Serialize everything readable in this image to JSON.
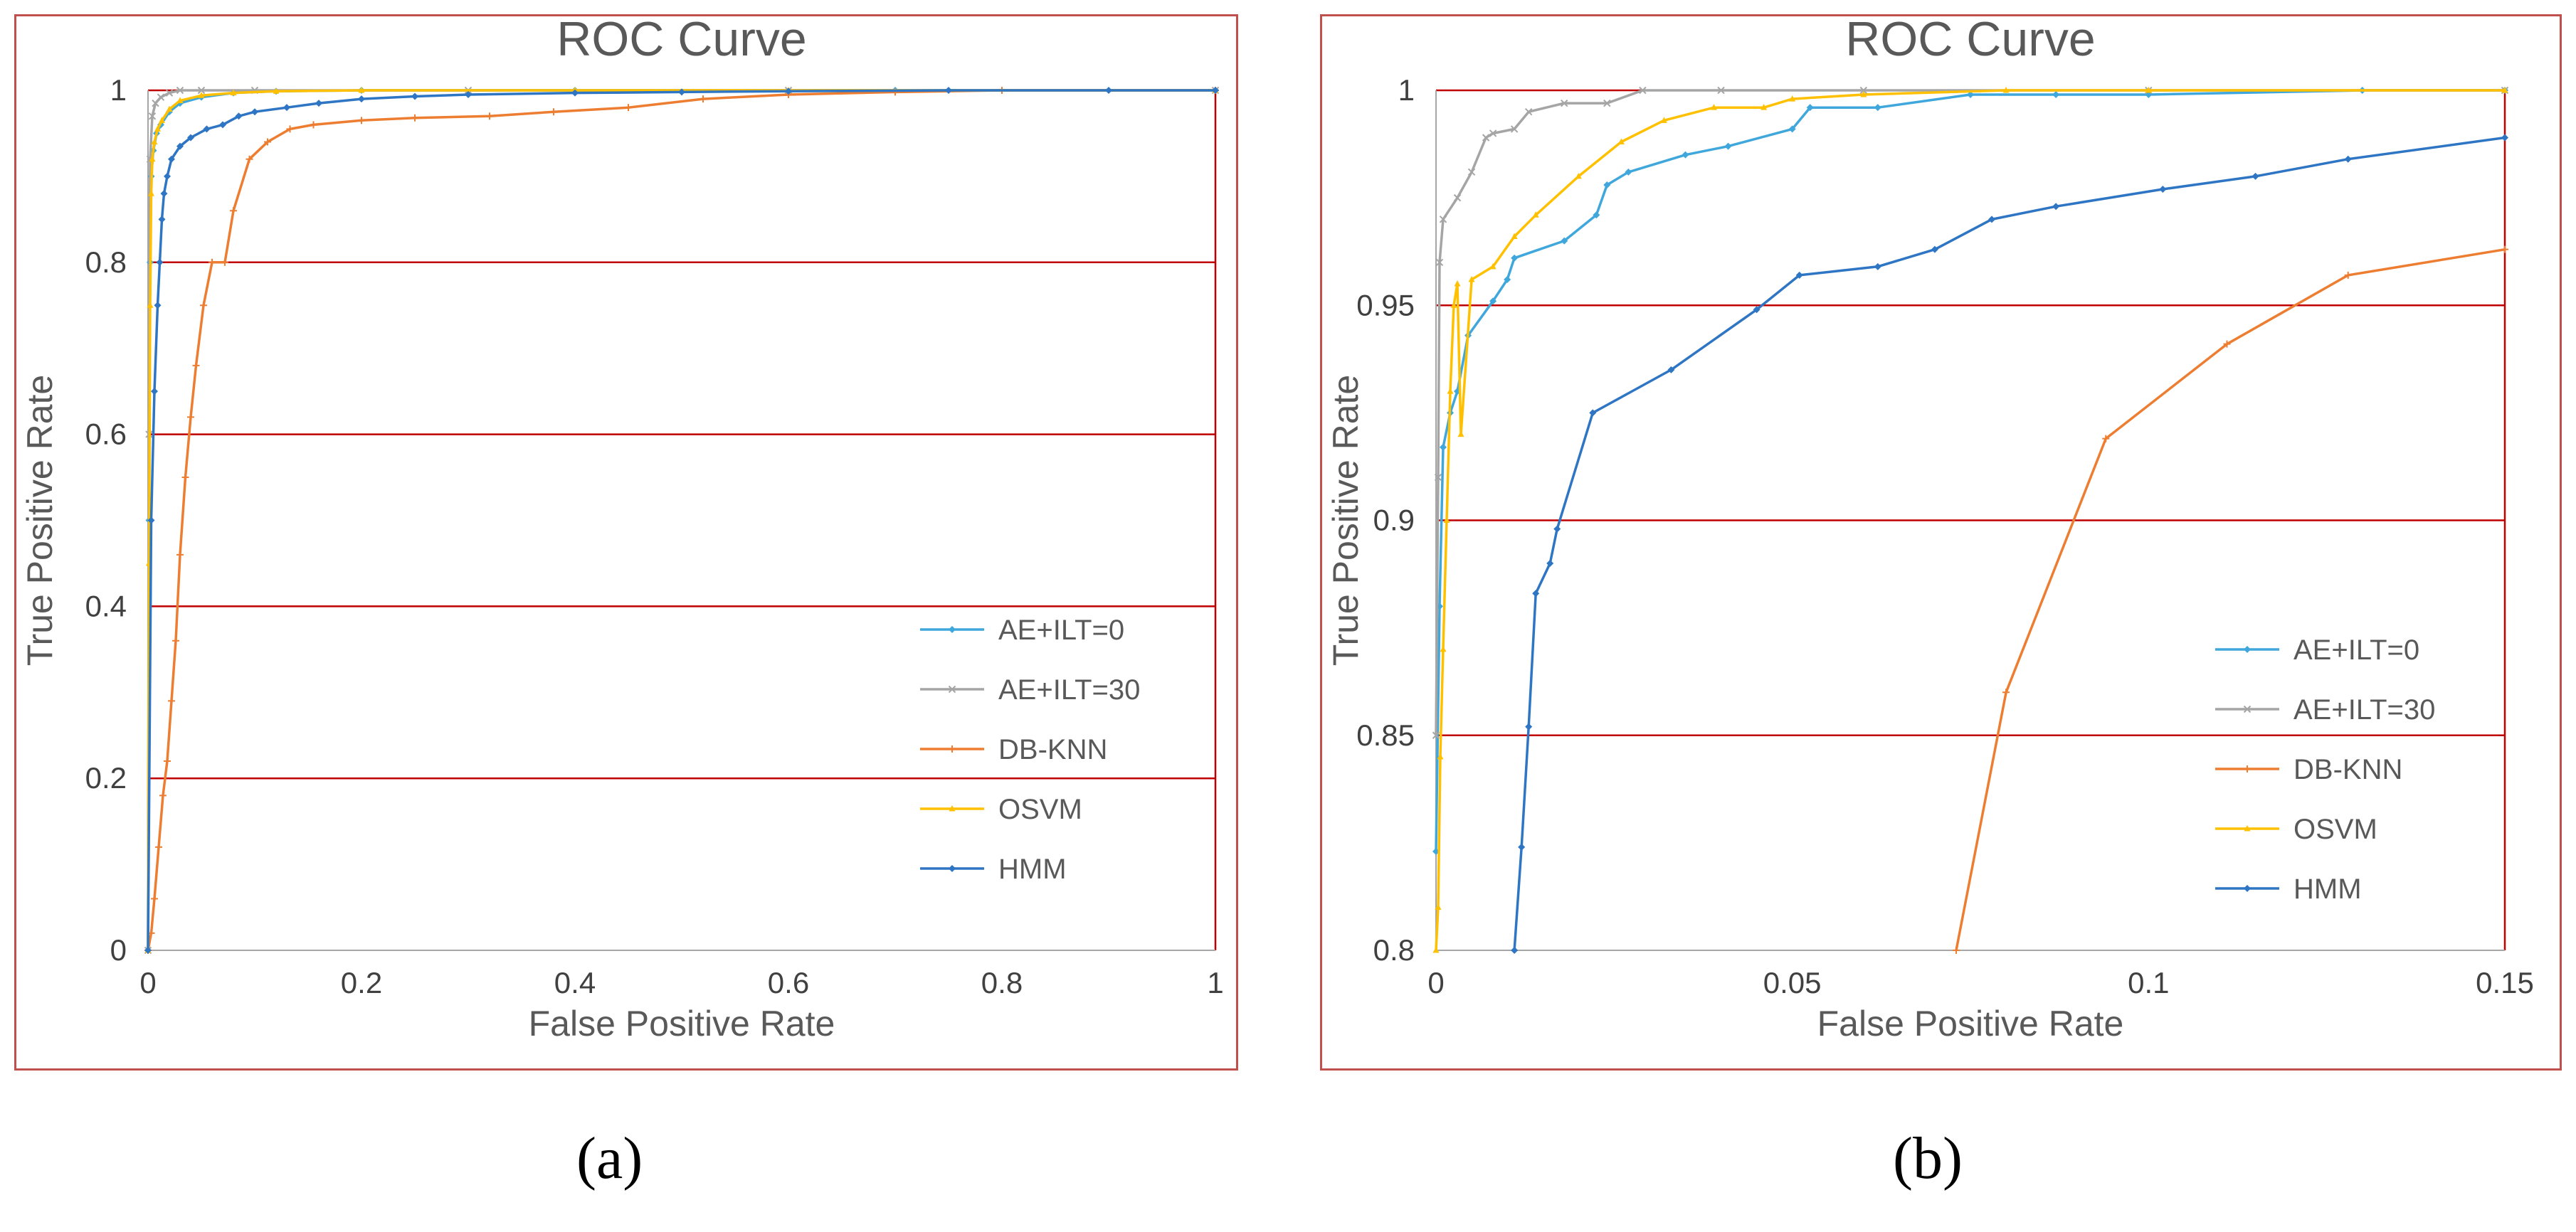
{
  "figure": {
    "label_a": "(a)",
    "label_b": "(b)",
    "colors": {
      "grid": "#c00000",
      "AE+ILT=0": "#3fa7db",
      "AE+ILT=30": "#a5a5a5",
      "DB-KNN": "#ed7d31",
      "OSVM": "#ffc000",
      "HMM": "#2e75c4"
    }
  },
  "chart_data": [
    {
      "type": "line",
      "title": "ROC Curve",
      "xlabel": "False Positive Rate",
      "ylabel": "True Positive Rate",
      "xlim": [
        0,
        1
      ],
      "ylim": [
        0,
        1
      ],
      "xticks": [
        0,
        0.2,
        0.4,
        0.6,
        0.8,
        1
      ],
      "xtick_labels": [
        "0",
        "0.2",
        "0.4",
        "0.6",
        "0.8",
        "1"
      ],
      "yticks": [
        0,
        0.2,
        0.4,
        0.6,
        0.8,
        1
      ],
      "ytick_labels": [
        "0",
        "0.2",
        "0.4",
        "0.6",
        "0.8",
        "1"
      ],
      "legend_position": "bottom-right",
      "series": [
        {
          "name": "AE+ILT=0",
          "x": [
            0,
            0.001,
            0.002,
            0.003,
            0.005,
            0.008,
            0.012,
            0.02,
            0.03,
            0.05,
            0.08,
            0.12,
            0.2,
            0.4,
            0.7,
            1
          ],
          "y": [
            0,
            0.5,
            0.8,
            0.9,
            0.93,
            0.95,
            0.96,
            0.975,
            0.985,
            0.992,
            0.997,
            0.999,
            1,
            1,
            1,
            1
          ]
        },
        {
          "name": "AE+ILT=30",
          "x": [
            0,
            0.001,
            0.002,
            0.004,
            0.007,
            0.012,
            0.02,
            0.03,
            0.05,
            0.1,
            0.3,
            0.6,
            1
          ],
          "y": [
            0,
            0.6,
            0.92,
            0.97,
            0.985,
            0.992,
            0.997,
            1,
            1,
            1,
            1,
            1,
            1
          ]
        },
        {
          "name": "DB-KNN",
          "x": [
            0,
            0.003,
            0.006,
            0.01,
            0.014,
            0.018,
            0.022,
            0.026,
            0.03,
            0.035,
            0.04,
            0.045,
            0.052,
            0.06,
            0.072,
            0.08,
            0.095,
            0.112,
            0.133,
            0.155,
            0.2,
            0.25,
            0.32,
            0.38,
            0.45,
            0.52,
            0.6,
            0.7,
            0.8,
            1
          ],
          "y": [
            0,
            0.02,
            0.06,
            0.12,
            0.18,
            0.22,
            0.29,
            0.36,
            0.46,
            0.55,
            0.62,
            0.68,
            0.75,
            0.8,
            0.8,
            0.86,
            0.92,
            0.94,
            0.955,
            0.96,
            0.965,
            0.968,
            0.97,
            0.975,
            0.98,
            0.99,
            0.995,
            0.998,
            1,
            1
          ]
        },
        {
          "name": "OSVM",
          "x": [
            0,
            0.001,
            0.002,
            0.003,
            0.004,
            0.006,
            0.009,
            0.013,
            0.02,
            0.03,
            0.05,
            0.08,
            0.12,
            0.2,
            0.4,
            0.6,
            1
          ],
          "y": [
            0,
            0.45,
            0.75,
            0.88,
            0.92,
            0.94,
            0.955,
            0.965,
            0.978,
            0.988,
            0.994,
            0.997,
            0.999,
            1,
            1,
            1,
            1
          ]
        },
        {
          "name": "HMM",
          "x": [
            0,
            0.003,
            0.006,
            0.009,
            0.011,
            0.013,
            0.015,
            0.018,
            0.022,
            0.03,
            0.04,
            0.055,
            0.07,
            0.085,
            0.1,
            0.13,
            0.16,
            0.2,
            0.25,
            0.3,
            0.4,
            0.5,
            0.6,
            0.75,
            0.9,
            1
          ],
          "y": [
            0,
            0.5,
            0.65,
            0.75,
            0.8,
            0.85,
            0.88,
            0.9,
            0.92,
            0.935,
            0.945,
            0.955,
            0.96,
            0.97,
            0.975,
            0.98,
            0.985,
            0.99,
            0.993,
            0.995,
            0.997,
            0.998,
            0.999,
            1,
            1,
            1
          ]
        }
      ]
    },
    {
      "type": "line",
      "title": "ROC Curve",
      "xlabel": "False Positive Rate",
      "ylabel": "True Positive Rate",
      "xlim": [
        0,
        0.15
      ],
      "ylim": [
        0.8,
        1
      ],
      "xticks": [
        0,
        0.05,
        0.1,
        0.15
      ],
      "xtick_labels": [
        "0",
        "0.05",
        "0.1",
        "0.15"
      ],
      "yticks": [
        0.8,
        0.85,
        0.9,
        0.95,
        1
      ],
      "ytick_labels": [
        "0.8",
        "0.85",
        "0.9",
        "0.95",
        "1"
      ],
      "legend_position": "bottom-right",
      "series": [
        {
          "name": "AE+ILT=0",
          "x": [
            0,
            0.0005,
            0.001,
            0.002,
            0.003,
            0.0045,
            0.008,
            0.01,
            0.011,
            0.018,
            0.0225,
            0.024,
            0.027,
            0.035,
            0.041,
            0.05,
            0.0525,
            0.062,
            0.075,
            0.087,
            0.1,
            0.13,
            0.15
          ],
          "y": [
            0.823,
            0.88,
            0.917,
            0.925,
            0.93,
            0.943,
            0.951,
            0.956,
            0.961,
            0.965,
            0.971,
            0.978,
            0.981,
            0.985,
            0.987,
            0.991,
            0.996,
            0.996,
            0.999,
            0.999,
            0.999,
            1,
            1
          ]
        },
        {
          "name": "AE+ILT=30",
          "x": [
            0,
            0.0003,
            0.0005,
            0.001,
            0.003,
            0.005,
            0.007,
            0.008,
            0.011,
            0.013,
            0.018,
            0.024,
            0.029,
            0.04,
            0.06,
            0.1,
            0.15
          ],
          "y": [
            0.85,
            0.91,
            0.96,
            0.97,
            0.975,
            0.981,
            0.989,
            0.99,
            0.991,
            0.995,
            0.997,
            0.997,
            1,
            1,
            1,
            1,
            1
          ]
        },
        {
          "name": "DB-KNN",
          "x": [
            0.073,
            0.08,
            0.094,
            0.111,
            0.128,
            0.15
          ],
          "y": [
            0.8,
            0.86,
            0.919,
            0.941,
            0.957,
            0.963
          ]
        },
        {
          "name": "OSVM",
          "x": [
            0,
            0.0003,
            0.0006,
            0.001,
            0.0015,
            0.002,
            0.0025,
            0.003,
            0.0035,
            0.005,
            0.008,
            0.011,
            0.014,
            0.02,
            0.026,
            0.032,
            0.039,
            0.046,
            0.05,
            0.06,
            0.08,
            0.1,
            0.15
          ],
          "y": [
            0.8,
            0.81,
            0.845,
            0.87,
            0.9,
            0.93,
            0.95,
            0.955,
            0.92,
            0.956,
            0.959,
            0.966,
            0.971,
            0.98,
            0.988,
            0.993,
            0.996,
            0.996,
            0.998,
            0.999,
            1,
            1,
            1
          ]
        },
        {
          "name": "HMM",
          "x": [
            0.011,
            0.012,
            0.013,
            0.014,
            0.016,
            0.017,
            0.022,
            0.033,
            0.045,
            0.051,
            0.062,
            0.07,
            0.078,
            0.087,
            0.102,
            0.115,
            0.128,
            0.15
          ],
          "y": [
            0.8,
            0.824,
            0.852,
            0.883,
            0.89,
            0.898,
            0.925,
            0.935,
            0.949,
            0.957,
            0.959,
            0.963,
            0.97,
            0.973,
            0.977,
            0.98,
            0.984,
            0.989
          ]
        }
      ]
    }
  ]
}
